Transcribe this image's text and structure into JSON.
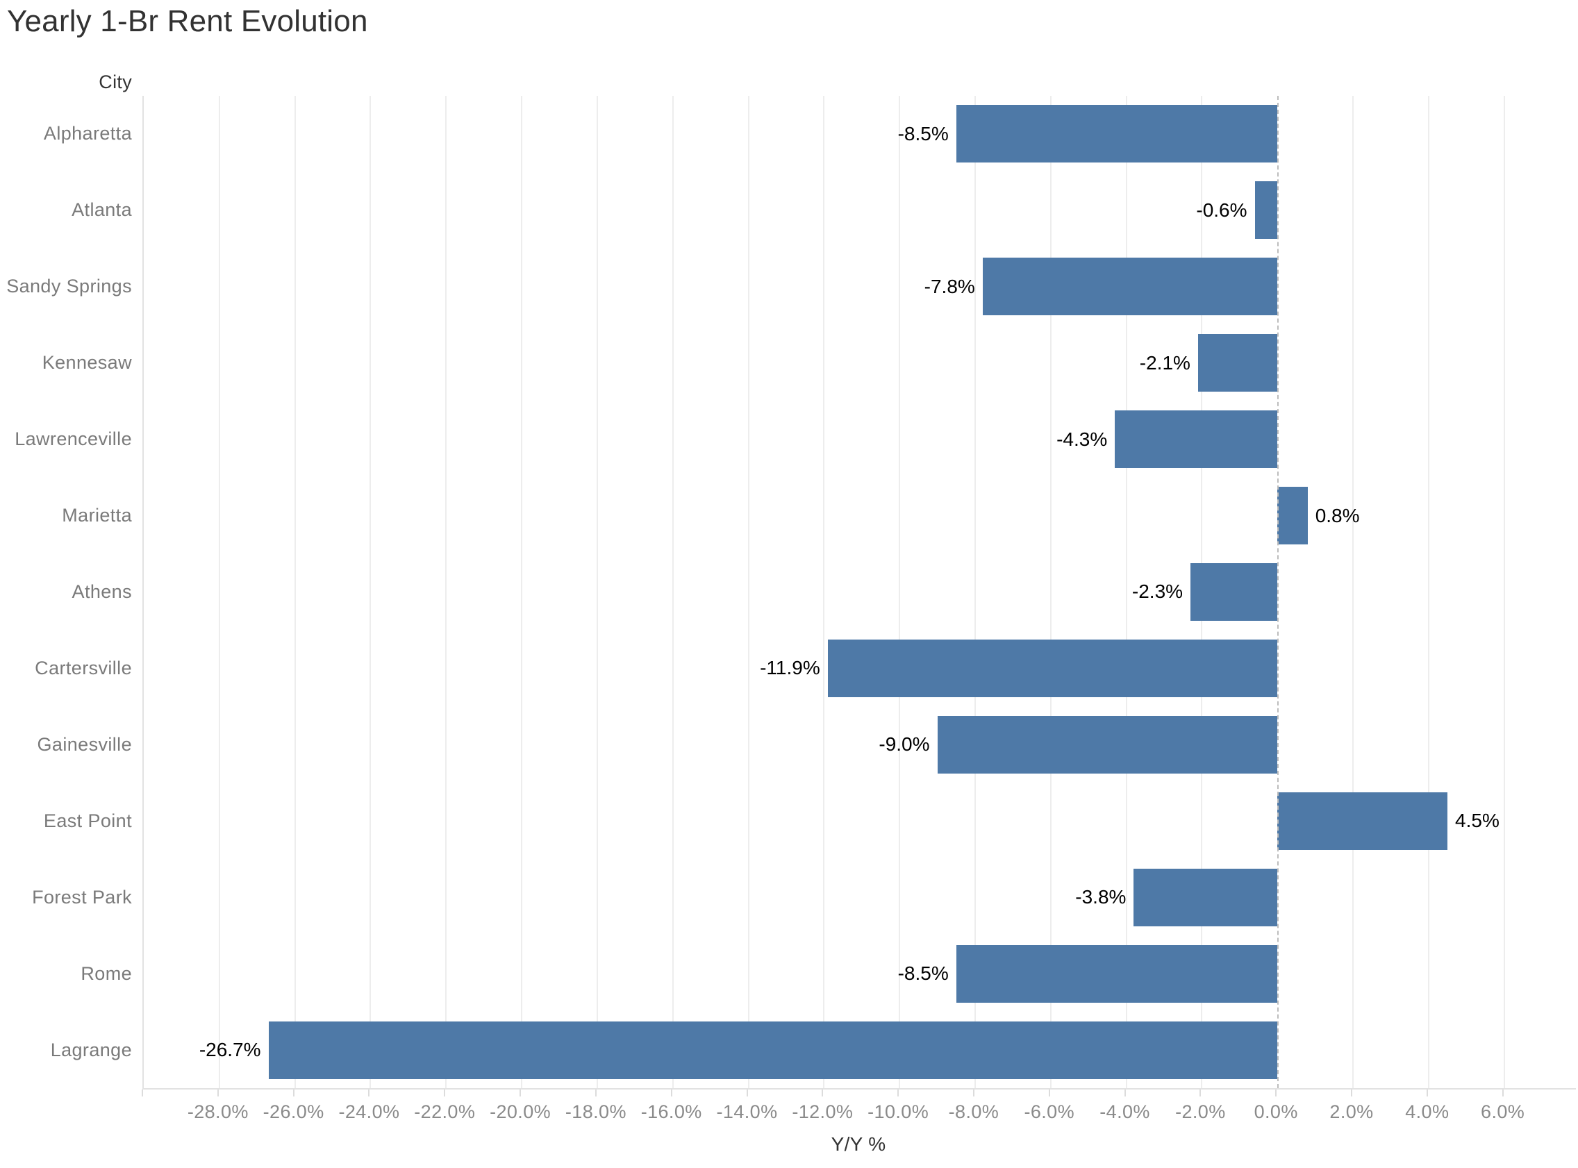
{
  "title": "Yearly 1-Br Rent Evolution",
  "category_header": "City",
  "axis_title": "Y/Y %",
  "colors": {
    "bar": "#4e79a7",
    "gridline": "#ededed",
    "zero_line": "#bdbdbd",
    "plot_border": "#e2e2e2",
    "title_text": "#323232",
    "header_text": "#333333",
    "category_text": "#7a7a7a",
    "tick_text": "#8a8a8a",
    "value_text": "#000000"
  },
  "chart_data": {
    "type": "bar",
    "orientation": "horizontal",
    "title": "Yearly 1-Br Rent Evolution",
    "xlabel": "Y/Y %",
    "ylabel": "City",
    "categories": [
      "Alpharetta",
      "Atlanta",
      "Sandy Springs",
      "Kennesaw",
      "Lawrenceville",
      "Marietta",
      "Athens",
      "Cartersville",
      "Gainesville",
      "East Point",
      "Forest Park",
      "Rome",
      "Lagrange"
    ],
    "values": [
      -8.5,
      -0.6,
      -7.8,
      -2.1,
      -4.3,
      0.8,
      -2.3,
      -11.9,
      -9.0,
      4.5,
      -3.8,
      -8.5,
      -26.7
    ],
    "value_labels": [
      "-8.5%",
      "-0.6%",
      "-7.8%",
      "-2.1%",
      "-4.3%",
      "0.8%",
      "-2.3%",
      "-11.9%",
      "-9.0%",
      "4.5%",
      "-3.8%",
      "-8.5%",
      "-26.7%"
    ],
    "xlim": [
      -30.0,
      7.9
    ],
    "xticks": [
      -28,
      -26,
      -24,
      -22,
      -20,
      -18,
      -16,
      -14,
      -12,
      -10,
      -8,
      -6,
      -4,
      -2,
      0,
      2,
      4,
      6
    ],
    "xtick_labels": [
      "-28.0%",
      "-26.0%",
      "-24.0%",
      "-22.0%",
      "-20.0%",
      "-18.0%",
      "-16.0%",
      "-14.0%",
      "-12.0%",
      "-10.0%",
      "-8.0%",
      "-6.0%",
      "-4.0%",
      "-2.0%",
      "0.0%",
      "2.0%",
      "4.0%",
      "6.0%"
    ],
    "grid": true,
    "zero_line": "dashed",
    "legend": null
  }
}
